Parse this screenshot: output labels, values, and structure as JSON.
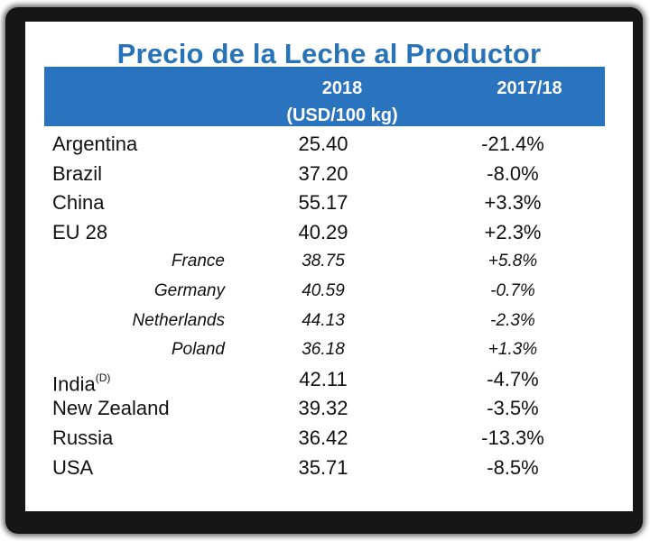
{
  "title": "Precio de la Leche al Productor",
  "header": {
    "col_year": "2018",
    "col_unit": "(USD/100 kg)",
    "col_change": "2017/18"
  },
  "rows": [
    {
      "country": "Argentina",
      "sup": "",
      "price": "25.40",
      "change": "-21.4%",
      "sub": false
    },
    {
      "country": "Brazil",
      "sup": "",
      "price": "37.20",
      "change": "-8.0%",
      "sub": false
    },
    {
      "country": "China",
      "sup": "",
      "price": "55.17",
      "change": "+3.3%",
      "sub": false
    },
    {
      "country": "EU 28",
      "sup": "",
      "price": "40.29",
      "change": "+2.3%",
      "sub": false
    },
    {
      "country": "France",
      "sup": "",
      "price": "38.75",
      "change": "+5.8%",
      "sub": true
    },
    {
      "country": "Germany",
      "sup": "",
      "price": "40.59",
      "change": "-0.7%",
      "sub": true
    },
    {
      "country": "Netherlands",
      "sup": "",
      "price": "44.13",
      "change": "-2.3%",
      "sub": true
    },
    {
      "country": "Poland",
      "sup": "",
      "price": "36.18",
      "change": "+1.3%",
      "sub": true
    },
    {
      "country": "India",
      "sup": "(D)",
      "price": "42.11",
      "change": "-4.7%",
      "sub": false
    },
    {
      "country": "New Zealand",
      "sup": "",
      "price": "39.32",
      "change": "-3.5%",
      "sub": false
    },
    {
      "country": "Russia",
      "sup": "",
      "price": "36.42",
      "change": "-13.3%",
      "sub": false
    },
    {
      "country": "USA",
      "sup": "",
      "price": "35.71",
      "change": "-8.5%",
      "sub": false
    }
  ]
}
